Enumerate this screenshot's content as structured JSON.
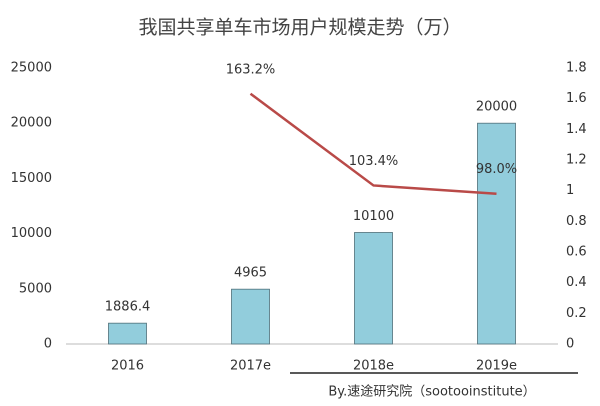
{
  "chart_data": {
    "type": "bar",
    "title": "我国共享单车市场用户规模走势（万）",
    "annotation": "By.速途研究院（sootooinstitute）",
    "categories": [
      "2016",
      "2017e",
      "2018e",
      "2019e"
    ],
    "series": [
      {
        "type": "bar",
        "color": "#92cddc",
        "values": [
          1886.4,
          4965,
          10100,
          20000
        ]
      },
      {
        "type": "line",
        "axis": "y2",
        "color": "#b94a48",
        "values": [
          null,
          1.632,
          1.034,
          0.98
        ],
        "value_labels": [
          null,
          "163.2%",
          "103.4%",
          "98.0%"
        ]
      }
    ],
    "ylim": [
      0,
      25000
    ],
    "yticks": [
      0,
      5000,
      10000,
      15000,
      20000,
      25000
    ],
    "y2lim": [
      0,
      1.8
    ],
    "y2ticks": [
      0,
      0.2,
      0.4,
      0.6,
      0.8,
      1,
      1.2,
      1.4,
      1.6,
      1.8
    ],
    "grid": false
  }
}
